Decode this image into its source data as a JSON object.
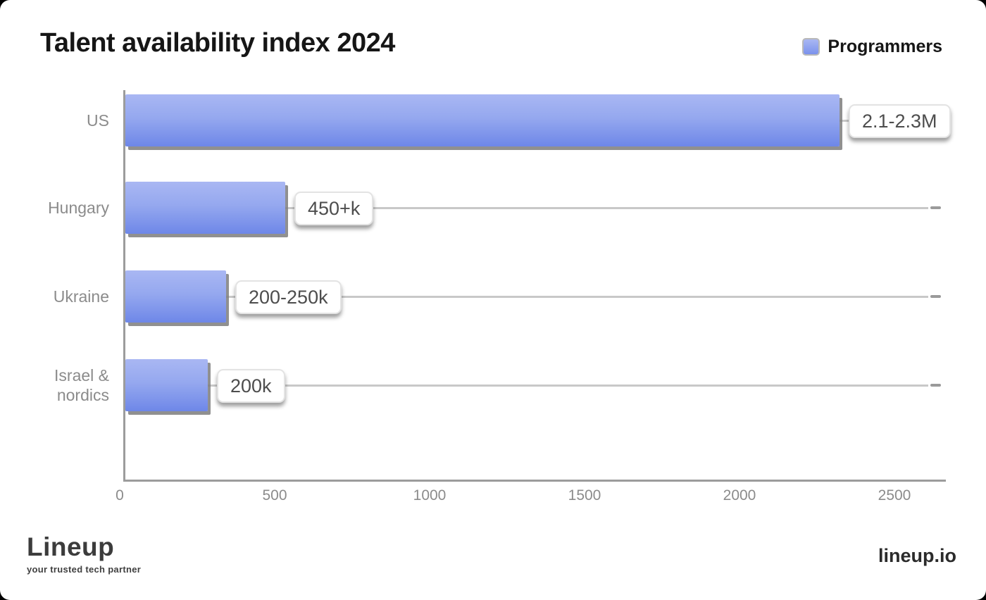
{
  "title": "Talent availability index 2024",
  "legend": {
    "label": "Programmers",
    "swatch_color": "#8ea3f0"
  },
  "chart_data": {
    "type": "bar",
    "orientation": "horizontal",
    "title": "Talent availability index 2024",
    "legend_position": "top-right",
    "series_name": "Programmers",
    "categories": [
      "US",
      "Hungary",
      "Ukraine",
      "Israel &\nnordics"
    ],
    "value_labels": [
      "2.1-2.3M",
      "450+k",
      "200-250k",
      "200k"
    ],
    "values_thousands": [
      2200,
      450,
      225,
      200
    ],
    "drawn_values_thousands": [
      2305,
      515,
      325,
      265
    ],
    "xlim_thousands": [
      0,
      2500
    ],
    "x_ticks": [
      "0",
      "500",
      "1000",
      "1500",
      "2000",
      "2500"
    ],
    "grid": "horizontal gray row lines with end dashes",
    "bar_color_top": "#a9b7f3",
    "bar_color_bottom": "#6e87e8",
    "bar_shadow_color": "#7d7d7d",
    "axis_color": "#9c9c9c",
    "label_color": "#8b8b8b"
  },
  "footer": {
    "brand": "Lineup",
    "tagline": "your trusted tech partner",
    "website": "lineup.io"
  }
}
